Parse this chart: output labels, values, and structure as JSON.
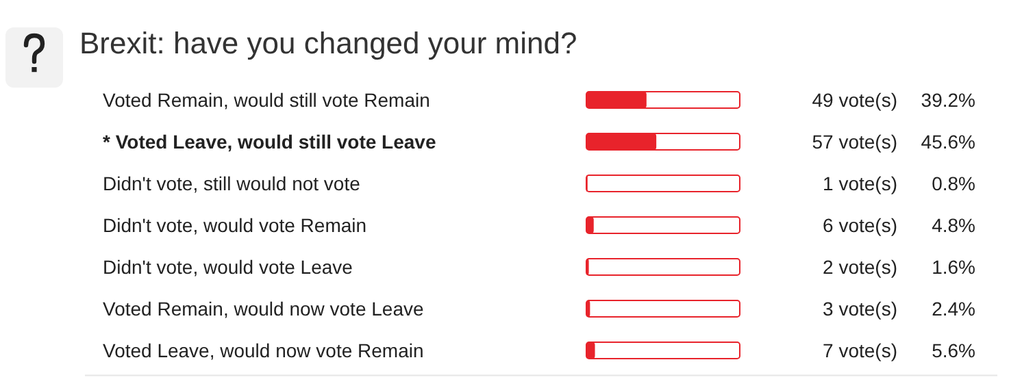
{
  "chart_data": {
    "type": "bar",
    "orientation": "horizontal",
    "title": "Brexit: have you changed your mind?",
    "categories": [
      "Voted Remain, would still vote Remain",
      "* Voted Leave, would still vote Leave",
      "Didn't vote, still would not vote",
      "Didn't vote, would vote Remain",
      "Didn't vote, would vote Leave",
      "Voted Remain, would now vote Leave",
      "Voted Leave, would now vote Remain"
    ],
    "values": [
      39.2,
      45.6,
      0.8,
      4.8,
      1.6,
      2.4,
      5.6
    ],
    "value_labels": [
      "39.2%",
      "45.6%",
      "0.8%",
      "4.8%",
      "1.6%",
      "2.4%",
      "5.6%"
    ],
    "color": "#e8232b",
    "xlim": [
      0,
      100
    ],
    "tick_labels": "y",
    "annotations": [
      "49 vote(s)",
      "57 vote(s)",
      "1 vote(s)",
      "6 vote(s)",
      "2 vote(s)",
      "3 vote(s)",
      "7 vote(s)"
    ]
  }
}
